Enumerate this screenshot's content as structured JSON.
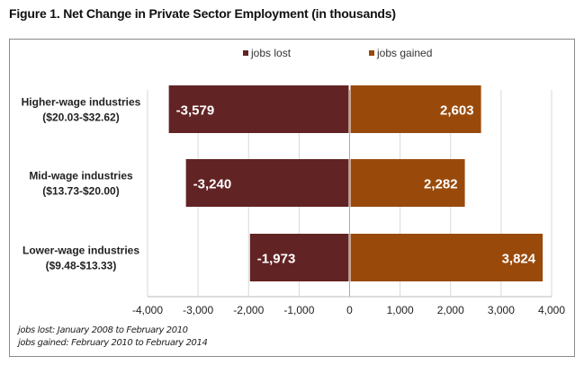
{
  "chart_data": {
    "type": "bar",
    "orientation": "horizontal",
    "title": "Figure 1. Net Change in Private Sector Employment (in thousands)",
    "categories": [
      [
        "Higher-wage industries",
        "($20.03-$32.62)"
      ],
      [
        "Mid-wage industries",
        "($13.73-$20.00)"
      ],
      [
        "Lower-wage industries",
        "($9.48-$13.33)"
      ]
    ],
    "series": [
      {
        "name": "jobs lost",
        "color": "#622324",
        "values": [
          -3579,
          -3240,
          -1973
        ],
        "labels": [
          "-3,579",
          "-3,240",
          "-1,973"
        ]
      },
      {
        "name": "jobs gained",
        "color": "#994a0b",
        "values": [
          2603,
          2282,
          3824
        ],
        "labels": [
          "2,603",
          "2,282",
          "3,824"
        ]
      }
    ],
    "xlim": [
      -4000,
      4000
    ],
    "xticks": [
      -4000,
      -3000,
      -2000,
      -1000,
      0,
      1000,
      2000,
      3000,
      4000
    ],
    "xtick_labels": [
      "-4,000",
      "-3,000",
      "-2,000",
      "-1,000",
      "0",
      "1,000",
      "2,000",
      "3,000",
      "4,000"
    ],
    "grid": true,
    "legend": "top",
    "notes": [
      "jobs lost: January 2008 to February 2010",
      "jobs gained: February 2010 to February 2014"
    ]
  }
}
